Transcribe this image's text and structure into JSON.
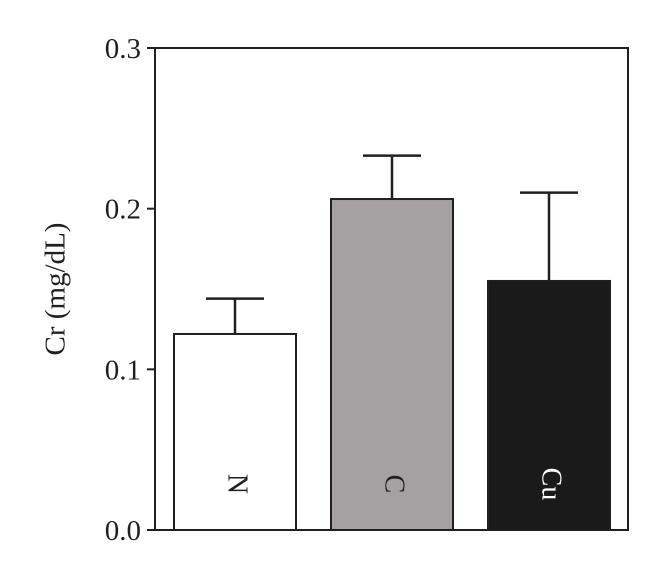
{
  "chart_data": {
    "type": "bar",
    "title": "",
    "xlabel": "",
    "ylabel": "Cr (mg/dL)",
    "ylim": [
      0,
      0.3
    ],
    "yticks": [
      "0.0",
      "0.1",
      "0.2",
      "0.3"
    ],
    "ytick_values": [
      0.0,
      0.1,
      0.2,
      0.3
    ],
    "grid": false,
    "categories": [
      "N",
      "C",
      "Cu"
    ],
    "values": [
      0.122,
      0.206,
      0.155
    ],
    "errors": [
      0.022,
      0.027,
      0.055
    ],
    "bar_colors": [
      "#ffffff",
      "#a5a0a1",
      "#1a1a1a"
    ],
    "label_colors": [
      "#231f20",
      "#231f20",
      "#ffffff"
    ],
    "line_color": "#231f20"
  }
}
